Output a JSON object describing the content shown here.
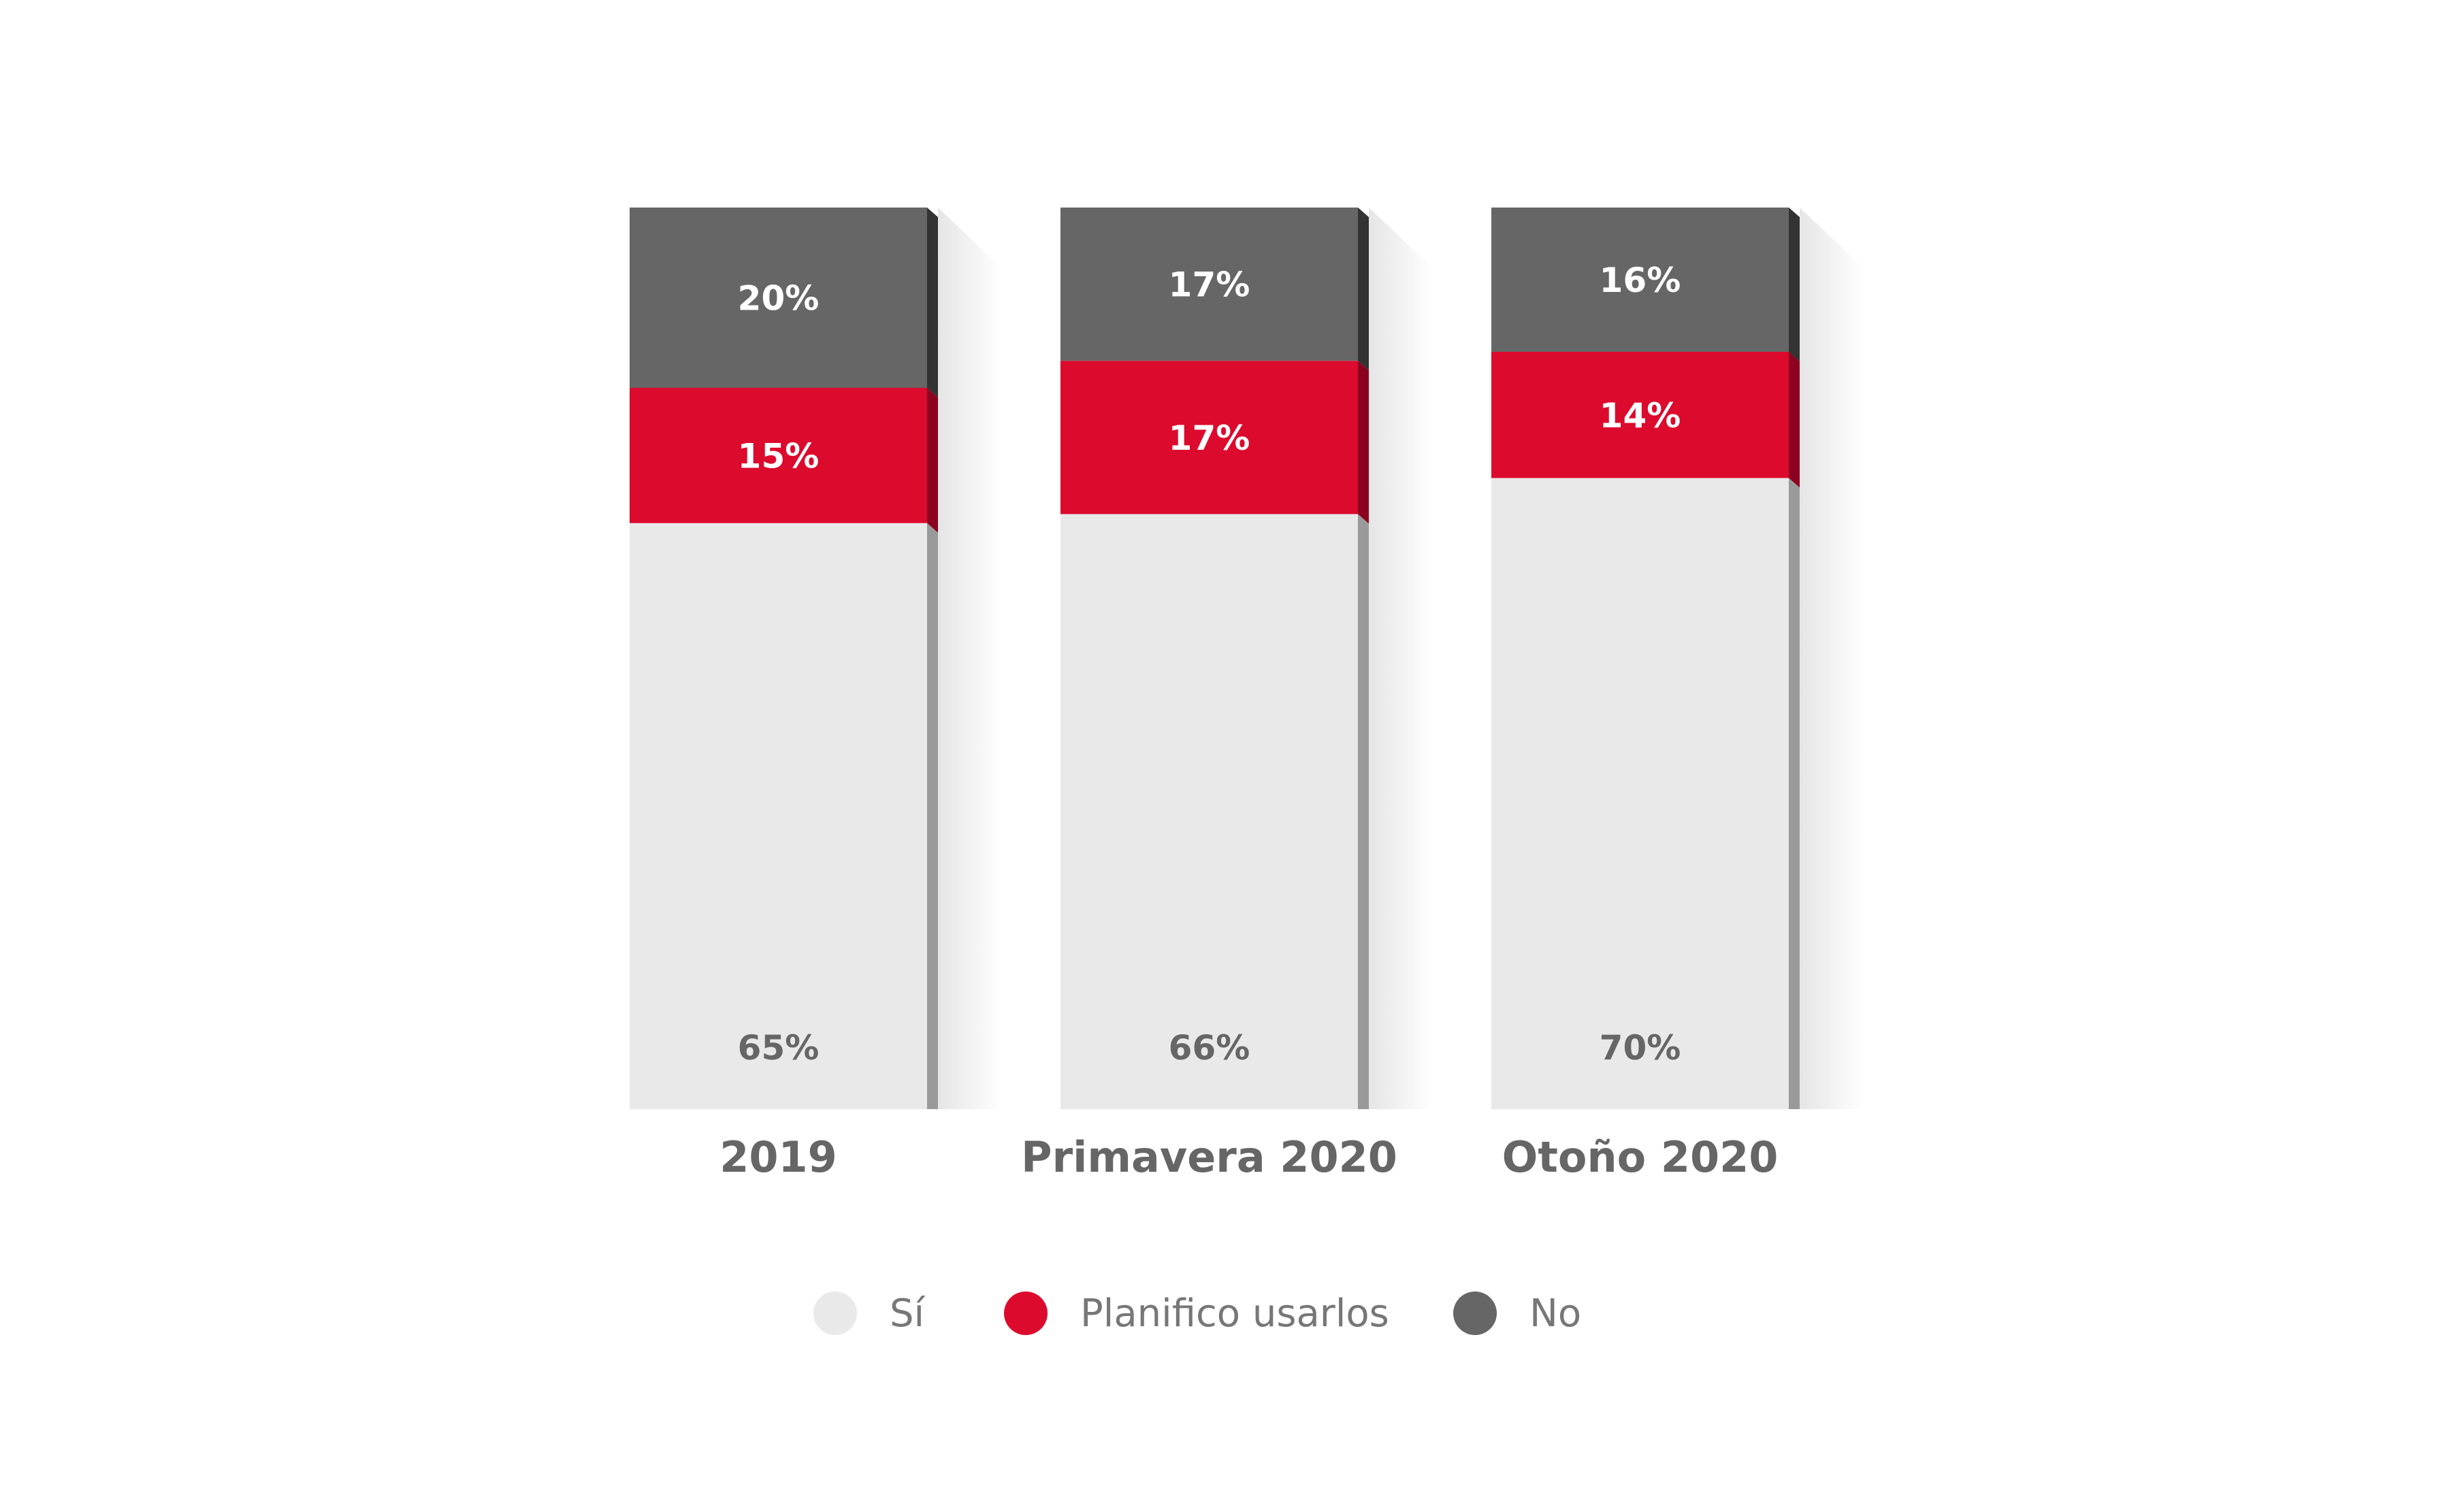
{
  "chart_data": {
    "type": "bar",
    "stacked": true,
    "categories": [
      "2019",
      "Primavera 2020",
      "Otoño 2020"
    ],
    "series": [
      {
        "name": "Sí",
        "values": [
          65,
          66,
          70
        ],
        "color": "#e9e9e9",
        "label_color": "#666666"
      },
      {
        "name": "Planifico usarlos",
        "values": [
          15,
          17,
          14
        ],
        "color": "#dc0a2d",
        "label_color": "#ffffff"
      },
      {
        "name": "No",
        "values": [
          20,
          17,
          16
        ],
        "color": "#666666",
        "label_color": "#ffffff"
      }
    ],
    "value_suffix": "%",
    "ylim": [
      0,
      100
    ],
    "legend_position": "bottom"
  }
}
